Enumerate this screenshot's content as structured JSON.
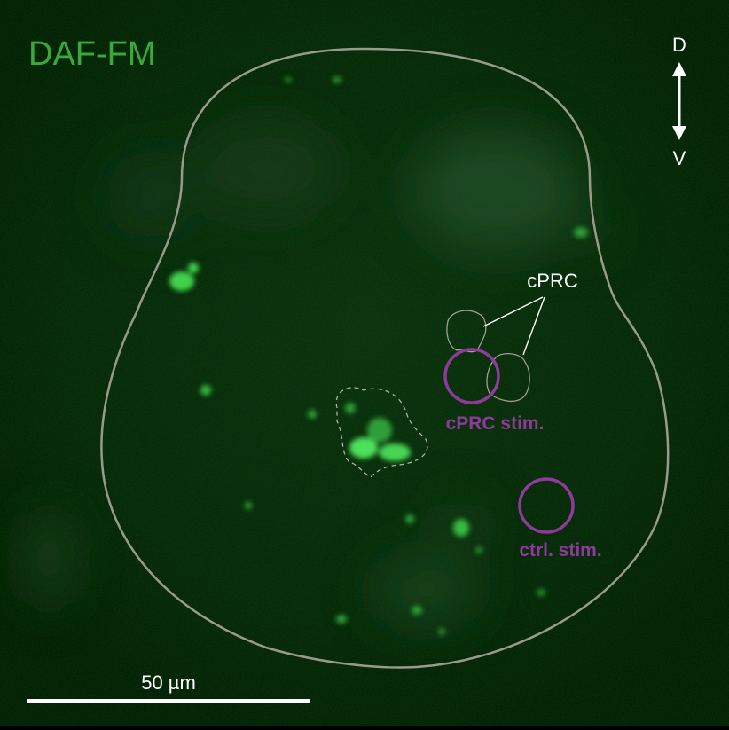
{
  "stain_label": "DAF-FM",
  "orientation": {
    "dorsal": "D",
    "ventral": "V"
  },
  "regions": {
    "cprc_label": "cPRC",
    "cprc_stim_label": "cPRC stim.",
    "ctrl_stim_label": "ctrl. stim."
  },
  "scale_bar": {
    "label": "50 µm"
  },
  "colors": {
    "stain": "#3aa83a",
    "stim": "#8e3a9c",
    "outline": "#9b9a8a",
    "annotation": "#ffffff"
  }
}
